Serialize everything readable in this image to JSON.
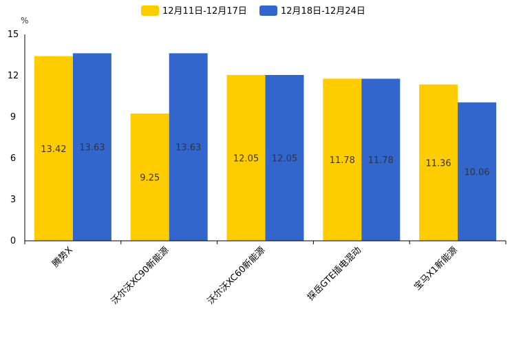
{
  "chart_data": {
    "type": "bar",
    "title": "",
    "xlabel": "",
    "ylabel": "%",
    "ylim": [
      0,
      15
    ],
    "yticks": [
      0,
      3,
      6,
      9,
      12,
      15
    ],
    "grid": false,
    "legend_position": "top-center",
    "categories": [
      "腾势X",
      "沃尔沃XC90新能源",
      "沃尔沃XC60新能源",
      "探岳GTE插电混动",
      "宝马X1新能源"
    ],
    "series": [
      {
        "name": "12月11日-12月17日",
        "color": "#FFCC00",
        "values": [
          13.42,
          9.25,
          12.05,
          11.78,
          11.36
        ],
        "labels": [
          "13.42",
          "9.25",
          "12.05",
          "11.78",
          "11.36"
        ]
      },
      {
        "name": "12月18日-12月24日",
        "color": "#3366CC",
        "values": [
          13.63,
          13.63,
          12.05,
          11.78,
          10.06
        ],
        "labels": [
          "13.63",
          "13.63",
          "12.05",
          "11.78",
          "10.06"
        ]
      }
    ]
  }
}
